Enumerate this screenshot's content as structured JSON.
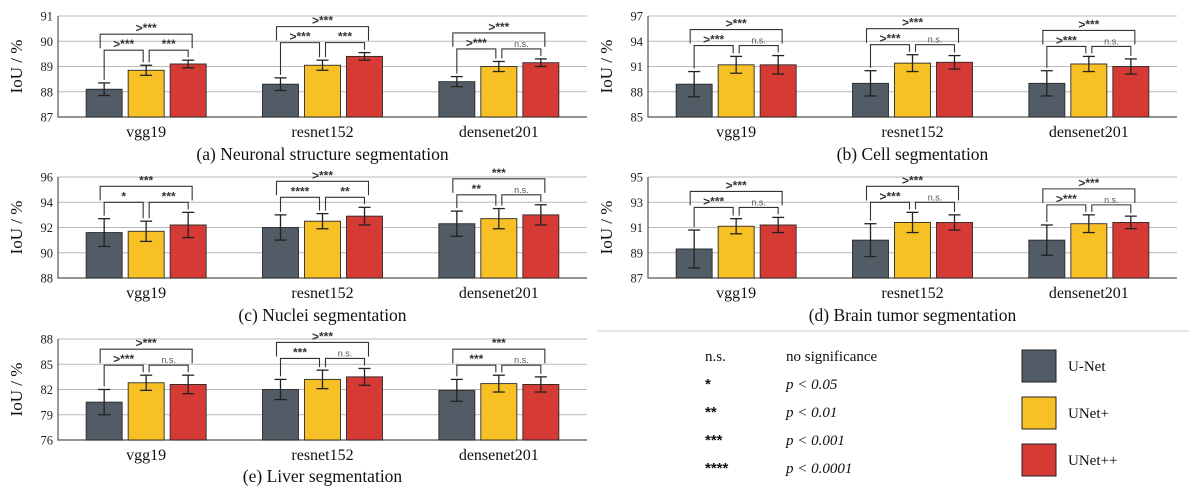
{
  "colors": {
    "unet": "#525c66",
    "unetplus": "#f7c025",
    "unetpp": "#d63a35"
  },
  "legend": {
    "significance": [
      {
        "symbol": "n.s.",
        "text": "no significance"
      },
      {
        "symbol": "*",
        "text": "p < 0.05"
      },
      {
        "symbol": "**",
        "text": "p < 0.01"
      },
      {
        "symbol": "***",
        "text": "p < 0.001"
      },
      {
        "symbol": "****",
        "text": "p < 0.0001"
      }
    ],
    "models": [
      "U-Net",
      "UNet+",
      "UNet++"
    ]
  },
  "chart_data": [
    {
      "type": "bar",
      "caption": "(a) Neuronal structure segmentation",
      "ylabel": "IoU / %",
      "ylim": [
        87,
        91
      ],
      "yticks": [
        87,
        88,
        89,
        90,
        91
      ],
      "categories": [
        "vgg19",
        "resnet152",
        "densenet201"
      ],
      "series": [
        {
          "name": "U-Net",
          "values": [
            88.1,
            88.3,
            88.4
          ],
          "errors": [
            0.25,
            0.25,
            0.2
          ]
        },
        {
          "name": "UNet+",
          "values": [
            88.85,
            89.05,
            89.0
          ],
          "errors": [
            0.2,
            0.2,
            0.2
          ]
        },
        {
          "name": "UNet++",
          "values": [
            89.1,
            89.4,
            89.15
          ],
          "errors": [
            0.15,
            0.15,
            0.15
          ]
        }
      ],
      "significance": [
        {
          "unet_unetplus": ">***",
          "unetplus_unetpp": "***",
          "unet_unetpp": ">***"
        },
        {
          "unet_unetplus": ">***",
          "unetplus_unetpp": "***",
          "unet_unetpp": ">***"
        },
        {
          "unet_unetplus": ">***",
          "unetplus_unetpp": "n.s.",
          "unet_unetpp": ">***"
        }
      ]
    },
    {
      "type": "bar",
      "caption": "(b) Cell segmentation",
      "ylabel": "IoU / %",
      "ylim": [
        85,
        97
      ],
      "yticks": [
        85,
        88,
        91,
        94,
        97
      ],
      "categories": [
        "vgg19",
        "resnet152",
        "densenet201"
      ],
      "series": [
        {
          "name": "U-Net",
          "values": [
            88.9,
            89.0,
            89.0
          ],
          "errors": [
            1.5,
            1.5,
            1.5
          ]
        },
        {
          "name": "UNet+",
          "values": [
            91.2,
            91.4,
            91.3
          ],
          "errors": [
            1.0,
            1.0,
            0.9
          ]
        },
        {
          "name": "UNet++",
          "values": [
            91.2,
            91.5,
            91.0
          ],
          "errors": [
            1.1,
            0.8,
            0.9
          ]
        }
      ],
      "significance": [
        {
          "unet_unetplus": ">***",
          "unetplus_unetpp": "n.s.",
          "unet_unetpp": ">***"
        },
        {
          "unet_unetplus": ">***",
          "unetplus_unetpp": "n.s.",
          "unet_unetpp": ">***"
        },
        {
          "unet_unetplus": ">***",
          "unetplus_unetpp": "n.s.",
          "unet_unetpp": ">***"
        }
      ]
    },
    {
      "type": "bar",
      "caption": "(c) Nuclei segmentation",
      "ylabel": "IoU / %",
      "ylim": [
        88,
        96
      ],
      "yticks": [
        88,
        90,
        92,
        94,
        96
      ],
      "categories": [
        "vgg19",
        "resnet152",
        "densenet201"
      ],
      "series": [
        {
          "name": "U-Net",
          "values": [
            91.6,
            92.0,
            92.3
          ],
          "errors": [
            1.1,
            1.0,
            1.0
          ]
        },
        {
          "name": "UNet+",
          "values": [
            91.7,
            92.5,
            92.7
          ],
          "errors": [
            0.8,
            0.6,
            0.8
          ]
        },
        {
          "name": "UNet++",
          "values": [
            92.2,
            92.9,
            93.0
          ],
          "errors": [
            1.0,
            0.7,
            0.8
          ]
        }
      ],
      "significance": [
        {
          "unet_unetplus": "*",
          "unetplus_unetpp": "***",
          "unet_unetpp": "***"
        },
        {
          "unet_unetplus": "****",
          "unetplus_unetpp": "**",
          "unet_unetpp": ">***"
        },
        {
          "unet_unetplus": "**",
          "unetplus_unetpp": "n.s.",
          "unet_unetpp": "***"
        }
      ]
    },
    {
      "type": "bar",
      "caption": "(d) Brain tumor segmentation",
      "ylabel": "IoU / %",
      "ylim": [
        87,
        95
      ],
      "yticks": [
        87,
        89,
        91,
        93,
        95
      ],
      "categories": [
        "vgg19",
        "resnet152",
        "densenet201"
      ],
      "series": [
        {
          "name": "U-Net",
          "values": [
            89.3,
            90.0,
            90.0
          ],
          "errors": [
            1.5,
            1.3,
            1.2
          ]
        },
        {
          "name": "UNet+",
          "values": [
            91.1,
            91.4,
            91.3
          ],
          "errors": [
            0.6,
            0.8,
            0.7
          ]
        },
        {
          "name": "UNet++",
          "values": [
            91.2,
            91.4,
            91.4
          ],
          "errors": [
            0.6,
            0.6,
            0.5
          ]
        }
      ],
      "significance": [
        {
          "unet_unetplus": ">***",
          "unetplus_unetpp": "n.s.",
          "unet_unetpp": ">***"
        },
        {
          "unet_unetplus": ">***",
          "unetplus_unetpp": "n.s.",
          "unet_unetpp": ">***"
        },
        {
          "unet_unetplus": ">***",
          "unetplus_unetpp": "n.s.",
          "unet_unetpp": ">***"
        }
      ]
    },
    {
      "type": "bar",
      "caption": "(e) Liver segmentation",
      "ylabel": "IoU / %",
      "ylim": [
        76,
        88
      ],
      "yticks": [
        76,
        79,
        82,
        85,
        88
      ],
      "categories": [
        "vgg19",
        "resnet152",
        "densenet201"
      ],
      "series": [
        {
          "name": "U-Net",
          "values": [
            80.5,
            82.0,
            81.9
          ],
          "errors": [
            1.5,
            1.2,
            1.3
          ]
        },
        {
          "name": "UNet+",
          "values": [
            82.8,
            83.2,
            82.7
          ],
          "errors": [
            0.9,
            1.1,
            1.0
          ]
        },
        {
          "name": "UNet++",
          "values": [
            82.6,
            83.5,
            82.6
          ],
          "errors": [
            1.1,
            1.0,
            0.9
          ]
        }
      ],
      "significance": [
        {
          "unet_unetplus": ">***",
          "unetplus_unetpp": "n.s.",
          "unet_unetpp": ">***"
        },
        {
          "unet_unetplus": "***",
          "unetplus_unetpp": "n.s.",
          "unet_unetpp": ">***"
        },
        {
          "unet_unetplus": "***",
          "unetplus_unetpp": "n.s.",
          "unet_unetpp": "***"
        }
      ]
    }
  ]
}
